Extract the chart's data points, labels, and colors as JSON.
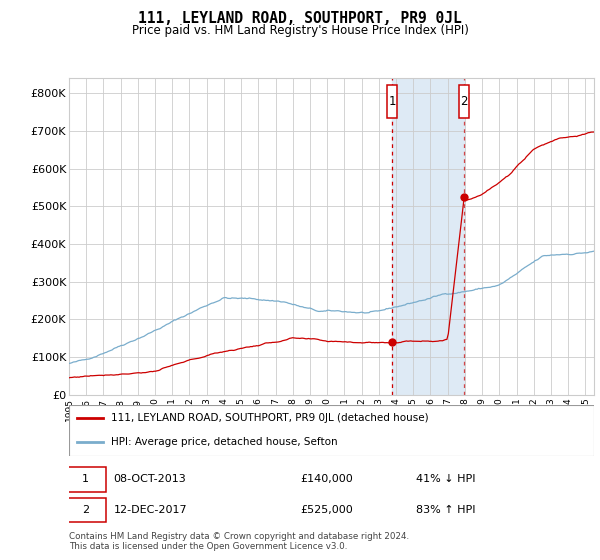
{
  "title": "111, LEYLAND ROAD, SOUTHPORT, PR9 0JL",
  "subtitle": "Price paid vs. HM Land Registry's House Price Index (HPI)",
  "xlim_start": 1995.0,
  "xlim_end": 2025.5,
  "ylim_min": 0,
  "ylim_max": 840000,
  "yticks": [
    0,
    100000,
    200000,
    300000,
    400000,
    500000,
    600000,
    700000,
    800000
  ],
  "ytick_labels": [
    "£0",
    "£100K",
    "£200K",
    "£300K",
    "£400K",
    "£500K",
    "£600K",
    "£700K",
    "£800K"
  ],
  "transaction1_date": 2013.77,
  "transaction1_value": 140000,
  "transaction2_date": 2017.95,
  "transaction2_value": 525000,
  "shade_start": 2013.77,
  "shade_end": 2017.95,
  "red_line_color": "#cc0000",
  "blue_line_color": "#7aadcc",
  "shade_color": "#deeaf5",
  "grid_color": "#cccccc",
  "box_color": "#cc0000",
  "legend_line1": "111, LEYLAND ROAD, SOUTHPORT, PR9 0JL (detached house)",
  "legend_line2": "HPI: Average price, detached house, Sefton",
  "note1_label": "1",
  "note1_date": "08-OCT-2013",
  "note1_value": "£140,000",
  "note1_pct": "41% ↓ HPI",
  "note2_label": "2",
  "note2_date": "12-DEC-2017",
  "note2_value": "£525,000",
  "note2_pct": "83% ↑ HPI",
  "footnote": "Contains HM Land Registry data © Crown copyright and database right 2024.\nThis data is licensed under the Open Government Licence v3.0."
}
